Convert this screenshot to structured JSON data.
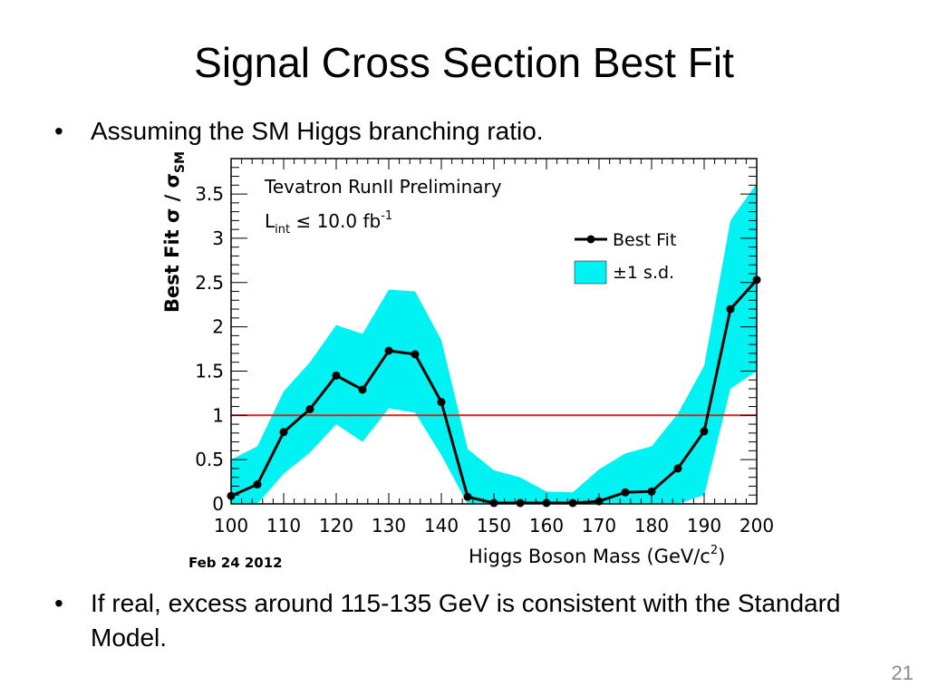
{
  "slide": {
    "title": "Signal Cross Section Best Fit",
    "bullets": [
      "Assuming the SM Higgs branching ratio.",
      "If real, excess around 115-135 GeV is consistent with the Standard Model."
    ],
    "bullet_char": "•",
    "page_number": "21"
  },
  "chart_data": {
    "type": "line",
    "title": "",
    "annotations": {
      "experiment": "Tevatron RunII Preliminary",
      "lumi_main": "L",
      "lumi_sub": "int",
      "lumi_rest": " ≤ 10.0 fb",
      "lumi_sup": "-1",
      "date": "Feb 24 2012"
    },
    "xlabel": "Higgs Boson Mass (GeV/c",
    "xlabel_sup": "2",
    "xlabel_end": ")",
    "ylabel": "Best Fit σ / σ",
    "ylabel_sub": "SM",
    "xlim": [
      100,
      200
    ],
    "ylim": [
      0,
      3.9
    ],
    "xticks": [
      100,
      110,
      120,
      130,
      140,
      150,
      160,
      170,
      180,
      190,
      200
    ],
    "xtick_labels": [
      "100",
      "110",
      "120",
      "130",
      "140",
      "150",
      "160",
      "170",
      "180",
      "190",
      "200"
    ],
    "yticks": [
      0,
      0.5,
      1,
      1.5,
      2,
      2.5,
      3,
      3.5
    ],
    "ytick_labels": [
      "0",
      "0.5",
      "1",
      "1.5",
      "2",
      "2.5",
      "3",
      "3.5"
    ],
    "legend_position": "top-right",
    "reference_line": {
      "y": 1,
      "color": "#dd2222"
    },
    "series": [
      {
        "name": "Best Fit",
        "color": "#000000",
        "x": [
          100,
          105,
          110,
          115,
          120,
          125,
          130,
          135,
          140,
          145,
          150,
          155,
          160,
          165,
          170,
          175,
          180,
          185,
          190,
          195,
          200
        ],
        "y": [
          0.09,
          0.22,
          0.81,
          1.07,
          1.45,
          1.29,
          1.73,
          1.69,
          1.15,
          0.08,
          0.01,
          0.01,
          0.01,
          0.01,
          0.03,
          0.13,
          0.14,
          0.4,
          0.82,
          2.2,
          2.53
        ]
      },
      {
        "name": "±1 s.d.",
        "type": "band",
        "color": "#00f2f2",
        "x": [
          100,
          105,
          110,
          115,
          120,
          125,
          130,
          135,
          140,
          145,
          150,
          155,
          160,
          165,
          170,
          175,
          180,
          185,
          190,
          195,
          200
        ],
        "upper": [
          0.5,
          0.65,
          1.27,
          1.6,
          2.02,
          1.92,
          2.42,
          2.4,
          1.85,
          0.62,
          0.38,
          0.3,
          0.14,
          0.13,
          0.39,
          0.57,
          0.65,
          1.02,
          1.56,
          3.2,
          3.62
        ],
        "lower": [
          0.0,
          0.0,
          0.34,
          0.58,
          0.9,
          0.7,
          1.08,
          1.03,
          0.55,
          0.0,
          0.0,
          0.0,
          0.0,
          0.0,
          0.0,
          0.0,
          0.0,
          0.0,
          0.1,
          1.3,
          1.5
        ]
      }
    ]
  }
}
